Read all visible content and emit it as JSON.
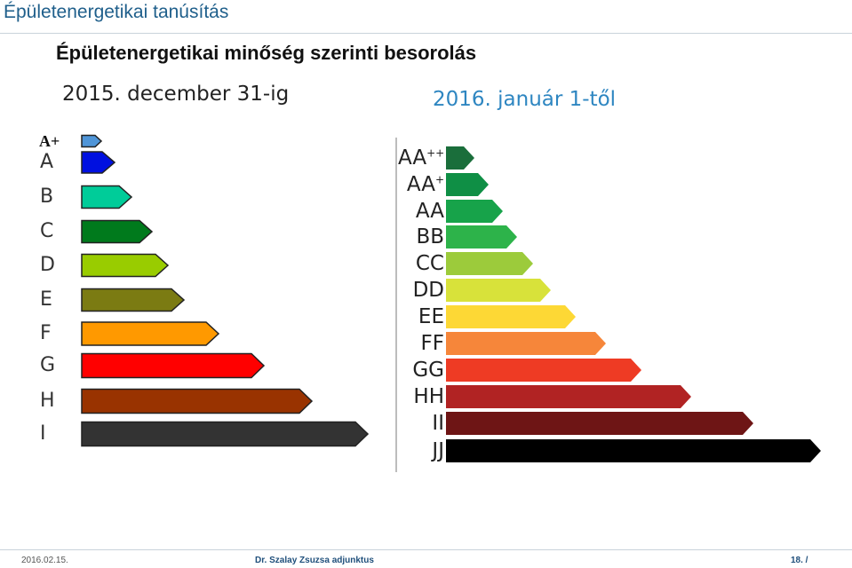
{
  "header": {
    "title": "Épületenergetikai tanúsítás"
  },
  "slide": {
    "heading": "Épületenergetikai minőség szerinti besorolás",
    "left_date": "2015. december 31-ig",
    "right_date": "2016. január 1-től"
  },
  "old_scale": [
    {
      "label": "A+",
      "color": "#4f95d8",
      "length": 1
    },
    {
      "label": "A",
      "color": "#0010e0",
      "length": 2
    },
    {
      "label": "B",
      "color": "#00cc99",
      "length": 3
    },
    {
      "label": "C",
      "color": "#007a1c",
      "length": 4
    },
    {
      "label": "D",
      "color": "#99cc00",
      "length": 5
    },
    {
      "label": "E",
      "color": "#7b7b12",
      "length": 6
    },
    {
      "label": "F",
      "color": "#ff9900",
      "length": 7
    },
    {
      "label": "G",
      "color": "#ff0000",
      "length": 8
    },
    {
      "label": "H",
      "color": "#993300",
      "length": 9
    },
    {
      "label": "I",
      "color": "#333333",
      "length": 10
    }
  ],
  "new_scale": [
    {
      "label": "AA",
      "sup": "++",
      "color": "#1a6e3b",
      "length": 1
    },
    {
      "label": "AA",
      "sup": "+",
      "color": "#0f8f45",
      "length": 2
    },
    {
      "label": "AA",
      "sup": "",
      "color": "#17a34a",
      "length": 3
    },
    {
      "label": "BB",
      "sup": "",
      "color": "#2db34a",
      "length": 4
    },
    {
      "label": "CC",
      "sup": "",
      "color": "#9ccb3b",
      "length": 5
    },
    {
      "label": "DD",
      "sup": "",
      "color": "#d8e23a",
      "length": 6
    },
    {
      "label": "EE",
      "sup": "",
      "color": "#fdd835",
      "length": 7
    },
    {
      "label": "FF",
      "sup": "",
      "color": "#f6863a",
      "length": 8
    },
    {
      "label": "GG",
      "sup": "",
      "color": "#ee3b24",
      "length": 9
    },
    {
      "label": "HH",
      "sup": "",
      "color": "#b12323",
      "length": 10
    },
    {
      "label": "II",
      "sup": "",
      "color": "#6e1515",
      "length": 11
    },
    {
      "label": "JJ",
      "sup": "",
      "color": "#000000",
      "length": 12
    }
  ],
  "footer": {
    "date": "2016.02.15.",
    "author": "Dr. Szalay Zsuzsa adjunktus",
    "page": "18. /"
  }
}
